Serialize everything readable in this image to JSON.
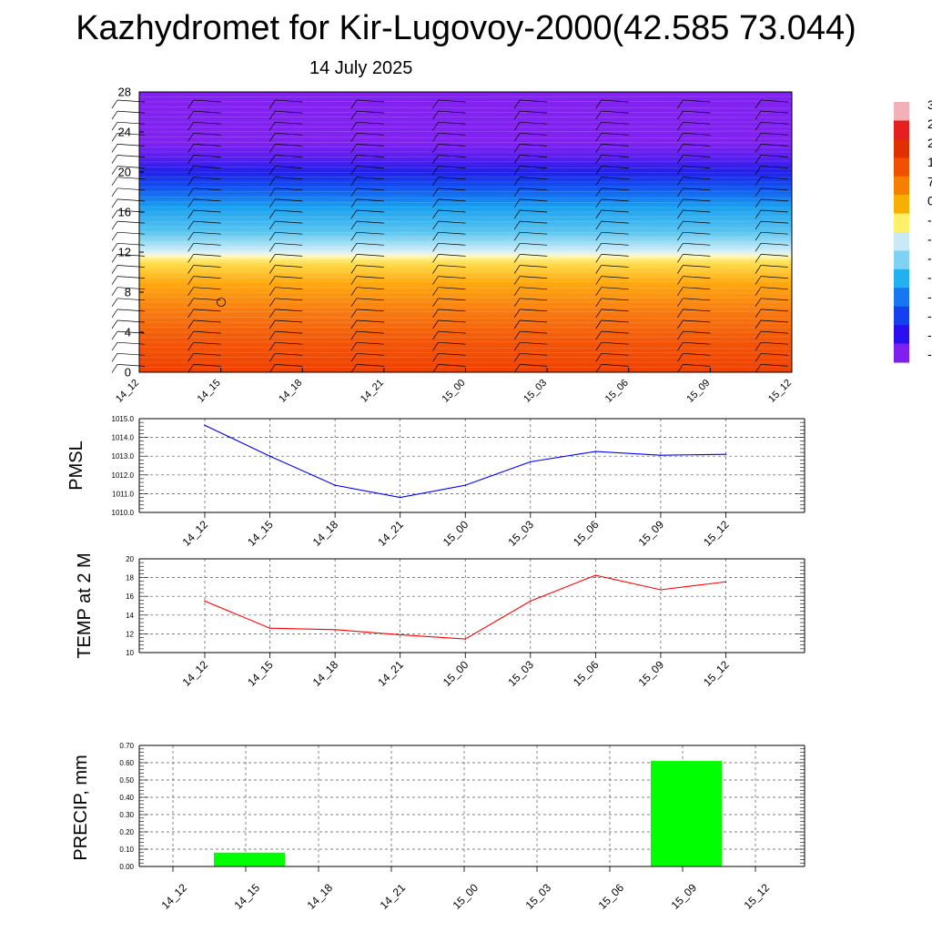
{
  "header": {
    "title": "Kazhydromet for Kir-Lugovoy-2000(42.585 73.044)",
    "date": "14 July 2025"
  },
  "chart_data": [
    {
      "type": "heatmap",
      "title": "",
      "xlabel": "",
      "ylabel": "",
      "x_ticks": [
        "14_12",
        "14_15",
        "14_18",
        "14_21",
        "15_00",
        "15_03",
        "15_06",
        "15_09",
        "15_12"
      ],
      "y_ticks": [
        "0",
        "4",
        "8",
        "12",
        "16",
        "20",
        "24",
        "28"
      ],
      "ylim": [
        0,
        28
      ],
      "grid": false,
      "wind_barbs": true,
      "colorbar": {
        "placement": "right",
        "labels": [
          "3",
          "2",
          "2",
          "1",
          "7",
          "0",
          "-",
          "-",
          "-",
          "-",
          "-",
          "-",
          "-",
          "-"
        ],
        "colors": [
          "#f2b0b8",
          "#e52020",
          "#e03000",
          "#f05000",
          "#f58000",
          "#f8b000",
          "#fff06a",
          "#c8eaf6",
          "#7fd2f2",
          "#22b0ef",
          "#1876f0",
          "#1540ef",
          "#2a10ef",
          "#8020f0"
        ]
      },
      "vertical_profile": [
        {
          "level": 0,
          "color": "#f04000"
        },
        {
          "level": 3,
          "color": "#f25508"
        },
        {
          "level": 6,
          "color": "#f87a10"
        },
        {
          "level": 9,
          "color": "#ffaa10"
        },
        {
          "level": 11,
          "color": "#ffe050"
        },
        {
          "level": 11.6,
          "color": "#fff9c0"
        },
        {
          "level": 12,
          "color": "#d8f0f8"
        },
        {
          "level": 14,
          "color": "#5ac5ef"
        },
        {
          "level": 16.5,
          "color": "#18a0f0"
        },
        {
          "level": 18.5,
          "color": "#1050f0"
        },
        {
          "level": 20,
          "color": "#2020e8"
        },
        {
          "level": 21.5,
          "color": "#5a1ef0"
        },
        {
          "level": 23,
          "color": "#8222f0"
        },
        {
          "level": 28,
          "color": "#8222f0"
        }
      ]
    },
    {
      "type": "line",
      "title": "",
      "ylabel": "PMSL",
      "categories": [
        "14_12",
        "14_15",
        "14_18",
        "14_21",
        "15_00",
        "15_03",
        "15_06",
        "15_09",
        "15_12"
      ],
      "y_ticks": [
        "1010.0",
        "1011.0",
        "1012.0",
        "1013.0",
        "1014.0",
        "1015.0"
      ],
      "ylim": [
        1010,
        1015
      ],
      "grid": true,
      "series": [
        {
          "color": "#0000ff",
          "values": [
            1014.65,
            1013.0,
            1011.45,
            1010.8,
            1011.45,
            1012.7,
            1013.25,
            1013.05,
            1013.1
          ]
        }
      ]
    },
    {
      "type": "line",
      "title": "",
      "ylabel": "TEMP at 2 M",
      "categories": [
        "14_12",
        "14_15",
        "14_18",
        "14_21",
        "15_00",
        "15_03",
        "15_06",
        "15_09",
        "15_12"
      ],
      "y_ticks": [
        "10",
        "12",
        "14",
        "16",
        "18",
        "20"
      ],
      "ylim": [
        10,
        20
      ],
      "grid": true,
      "series": [
        {
          "color": "#ff0000",
          "values": [
            15.5,
            12.6,
            12.45,
            11.9,
            11.45,
            15.5,
            18.25,
            16.7,
            17.55
          ]
        }
      ]
    },
    {
      "type": "bar",
      "title": "",
      "ylabel": "PRECIP, mm",
      "categories": [
        "14_12",
        "14_15",
        "14_18",
        "14_21",
        "15_00",
        "15_03",
        "15_06",
        "15_09",
        "15_12"
      ],
      "y_ticks": [
        "0.00",
        "0.10",
        "0.20",
        "0.30",
        "0.40",
        "0.50",
        "0.60",
        "0.70"
      ],
      "ylim": [
        0,
        0.7
      ],
      "grid": true,
      "bar_color": "#00ff00",
      "values": [
        0,
        0.08,
        0,
        0,
        0,
        0,
        0,
        0.61,
        0
      ]
    }
  ]
}
